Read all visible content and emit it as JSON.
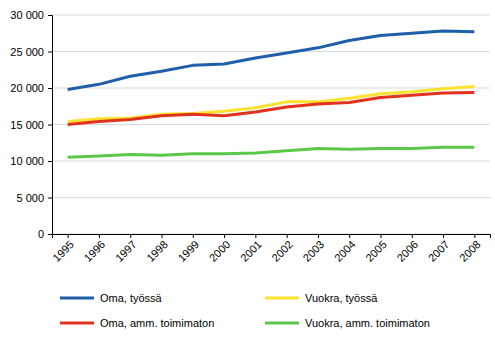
{
  "chart_data": {
    "type": "line",
    "categories": [
      "1995",
      "1996",
      "1997",
      "1998",
      "1999",
      "2000",
      "2001",
      "2002",
      "2003",
      "2004",
      "2005",
      "2006",
      "2007",
      "2008"
    ],
    "series": [
      {
        "name": "Oma, työssä",
        "color": "#1F5FAA",
        "values": [
          19800,
          20500,
          21600,
          22300,
          23100,
          23300,
          24100,
          24800,
          25500,
          26500,
          27200,
          27500,
          27800,
          27700
        ]
      },
      {
        "name": "Vuokra, työssä",
        "color": "#FFE22E",
        "values": [
          15400,
          15800,
          15900,
          16400,
          16500,
          16800,
          17300,
          18100,
          18100,
          18600,
          19200,
          19500,
          19900,
          20200
        ]
      },
      {
        "name": "Oma, amm. toimimaton",
        "color": "#E2321E",
        "values": [
          15000,
          15400,
          15700,
          16200,
          16400,
          16200,
          16700,
          17400,
          17800,
          18000,
          18700,
          19000,
          19300,
          19400
        ]
      },
      {
        "name": "Vuokra, amm. toimimaton",
        "color": "#5CC84A",
        "values": [
          10500,
          10700,
          10900,
          10800,
          11000,
          11000,
          11100,
          11400,
          11700,
          11600,
          11700,
          11700,
          11900,
          11900
        ]
      }
    ],
    "ylim": [
      0,
      30000
    ],
    "yticks": [
      0,
      {
        "value": 5000,
        "label": "5 000"
      },
      {
        "value": 10000,
        "label": "10 000"
      },
      {
        "value": 15000,
        "label": "15 000"
      },
      {
        "value": 20000,
        "label": "20 000"
      },
      {
        "value": 25000,
        "label": "25 000"
      },
      {
        "value": 30000,
        "label": "30 000"
      }
    ],
    "grid": true,
    "legend": "bottom"
  }
}
